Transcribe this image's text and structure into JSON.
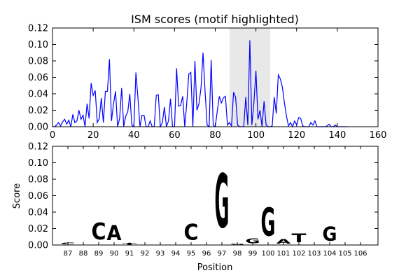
{
  "chart_data": [
    {
      "type": "line",
      "title": "ISM scores (motif highlighted)",
      "xlabel": "",
      "ylabel": "",
      "xlim": [
        0,
        160
      ],
      "ylim": [
        0,
        0.12
      ],
      "xticks": [
        "0",
        "20",
        "40",
        "60",
        "80",
        "100",
        "120",
        "140",
        "160"
      ],
      "yticks": [
        "0.00",
        "0.02",
        "0.04",
        "0.06",
        "0.08",
        "0.10",
        "0.12"
      ],
      "highlight_range": [
        87,
        107
      ],
      "colors": {
        "line": "#0000ff",
        "highlight": "#e8e8e8"
      },
      "grid": false,
      "series": [
        {
          "x": [
            0,
            1,
            2,
            3,
            4,
            5,
            6,
            7,
            8,
            9,
            10,
            11,
            12,
            13,
            14,
            15,
            16,
            17,
            18,
            19,
            20,
            21,
            22,
            23,
            24,
            25,
            26,
            27,
            28,
            29,
            30,
            31,
            32,
            33,
            34,
            35,
            36,
            37,
            38,
            39,
            40,
            41,
            42,
            43,
            44,
            45,
            46,
            47,
            48,
            49,
            50,
            51,
            52,
            53,
            54,
            55,
            56,
            57,
            58,
            59,
            60,
            61,
            62,
            63,
            64,
            65,
            66,
            67,
            68,
            69,
            70,
            71,
            72,
            73,
            74,
            75,
            76,
            77,
            78,
            79,
            80,
            81,
            82,
            83,
            84,
            85,
            86,
            87,
            88,
            89,
            90,
            91,
            92,
            93,
            94,
            95,
            96,
            97,
            98,
            99,
            100,
            101,
            102,
            103,
            104,
            105,
            106,
            107,
            108,
            109,
            110,
            111,
            112,
            113,
            114,
            115,
            116,
            117,
            118,
            119,
            120,
            121,
            122,
            123,
            124,
            125,
            126,
            127,
            128,
            129,
            130,
            131,
            132,
            133,
            134,
            135,
            136,
            137,
            138,
            139,
            140,
            141,
            142,
            143,
            144,
            145
          ],
          "y": [
            0,
            0,
            0.002,
            0.005,
            0.001,
            0.006,
            0.009,
            0.003,
            0.008,
            0,
            0.015,
            0.005,
            0.007,
            0.02,
            0.009,
            0.014,
            0,
            0.028,
            0.01,
            0.053,
            0.038,
            0.044,
            0.005,
            0.01,
            0.035,
            0.005,
            0.043,
            0.043,
            0.082,
            0.007,
            0.028,
            0.043,
            0,
            0.01,
            0.047,
            0,
            0.013,
            0.018,
            0.04,
            0.002,
            0,
            0.066,
            0.035,
            0,
            0.014,
            0.014,
            0,
            0,
            0.007,
            0,
            0,
            0.038,
            0.039,
            0,
            0.005,
            0.024,
            0,
            0.007,
            0.034,
            0,
            0,
            0.071,
            0.025,
            0.026,
            0.037,
            0,
            0.029,
            0.064,
            0.066,
            0,
            0.08,
            0.02,
            0.028,
            0.047,
            0.09,
            0.043,
            0.002,
            0,
            0.081,
            0.002,
            0,
            0.019,
            0.037,
            0.029,
            0.035,
            0.037,
            0.002,
            0.005,
            0.001,
            0.042,
            0.036,
            0.002,
            0,
            0,
            0,
            0.036,
            0.002,
            0.105,
            0.002,
            0.029,
            0.068,
            0.009,
            0.02,
            0,
            0.031,
            0.002,
            0,
            0,
            0.001,
            0.036,
            0.016,
            0.063,
            0.058,
            0.048,
            0.029,
            0.013,
            0.001,
            0.005,
            0,
            0.007,
            0.002,
            0.011,
            0.01,
            0.001,
            0,
            0,
            0,
            0.005,
            0.002,
            0.007,
            0,
            0,
            0,
            0,
            0,
            0.001,
            0.003,
            0,
            0,
            0.002,
            0,
            0,
            0,
            0,
            0,
            0
          ]
        }
      ]
    },
    {
      "type": "sequence-logo",
      "title": "",
      "xlabel": "Position",
      "ylabel": "Score",
      "ylim": [
        0,
        0.12
      ],
      "yticks": [
        "0.00",
        "0.02",
        "0.04",
        "0.06",
        "0.08",
        "0.10",
        "0.12"
      ],
      "positions": [
        "87",
        "88",
        "89",
        "90",
        "91",
        "92",
        "93",
        "94",
        "95",
        "96",
        "97",
        "98",
        "99",
        "100",
        "101",
        "102",
        "103",
        "104",
        "105",
        "106"
      ],
      "letters": [
        {
          "position": "87",
          "letter": "C",
          "height": 0.0035,
          "color": "#0000ff"
        },
        {
          "position": "89",
          "letter": "C",
          "height": 0.033,
          "color": "#0000ff"
        },
        {
          "position": "90",
          "letter": "A",
          "height": 0.029,
          "color": "#008000"
        },
        {
          "position": "91",
          "letter": "T",
          "height": 0.003,
          "color": "#ff0000"
        },
        {
          "position": "95",
          "letter": "C",
          "height": 0.031,
          "color": "#0000ff"
        },
        {
          "position": "97",
          "letter": "G",
          "height": 0.105,
          "color": "#ffa500"
        },
        {
          "position": "98",
          "letter": "G",
          "height": 0.002,
          "color": "#ffa500"
        },
        {
          "position": "99",
          "letter": "G",
          "height": 0.01,
          "color": "#ffa500"
        },
        {
          "position": "100",
          "letter": "G",
          "height": 0.055,
          "color": "#ffa500"
        },
        {
          "position": "101",
          "letter": "A",
          "height": 0.009,
          "color": "#008000"
        },
        {
          "position": "102",
          "letter": "T",
          "height": 0.017,
          "color": "#ff0000"
        },
        {
          "position": "104",
          "letter": "G",
          "height": 0.027,
          "color": "#ffa500"
        }
      ]
    }
  ]
}
